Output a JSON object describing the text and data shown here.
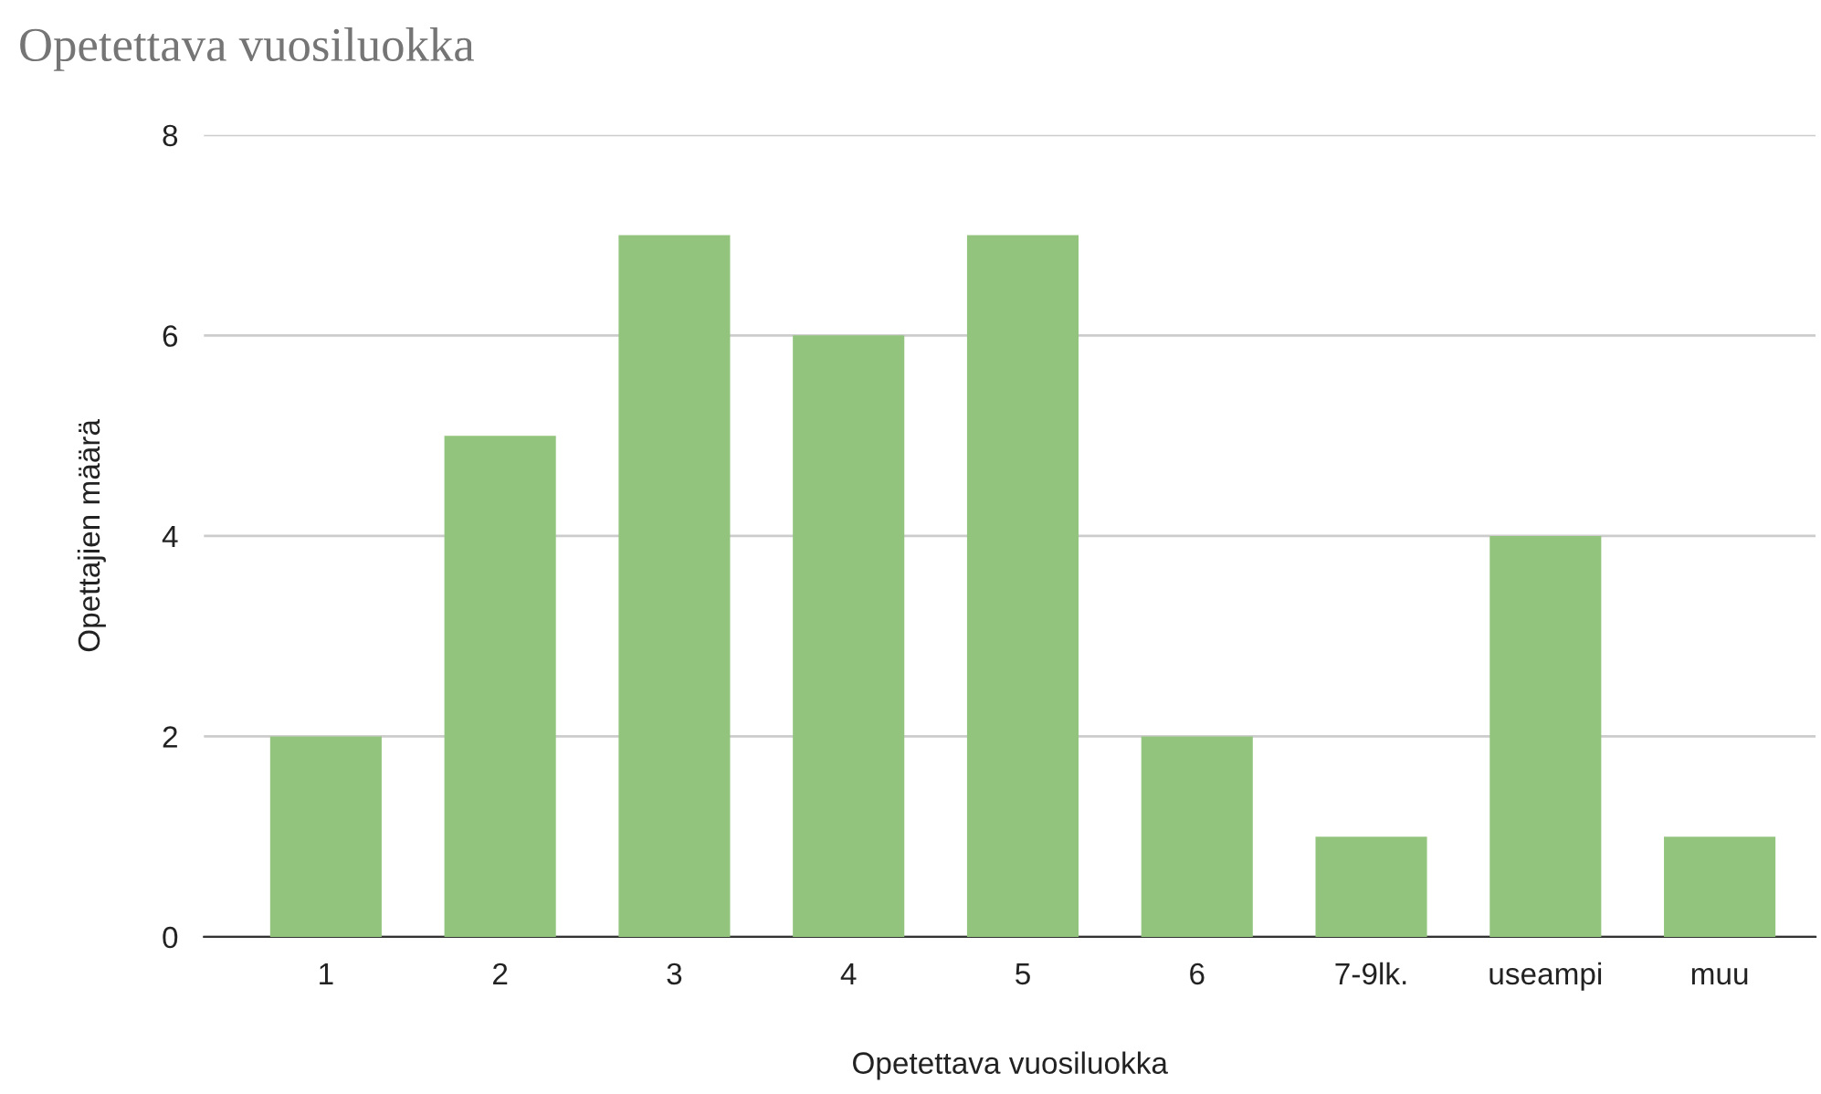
{
  "chart_data": {
    "type": "bar",
    "title": "Opetettava vuosiluokka",
    "xlabel": "Opetettava vuosiluokka",
    "ylabel": "Opettajien määrä",
    "categories": [
      "1",
      "2",
      "3",
      "4",
      "5",
      "6",
      "7-9lk.",
      "useampi",
      "muu"
    ],
    "values": [
      2,
      5,
      7,
      6,
      7,
      2,
      1,
      4,
      1
    ],
    "color": "#93c47d",
    "ylim": [
      0,
      8
    ],
    "yticks": [
      0,
      2,
      4,
      6,
      8
    ],
    "grid": "y"
  }
}
